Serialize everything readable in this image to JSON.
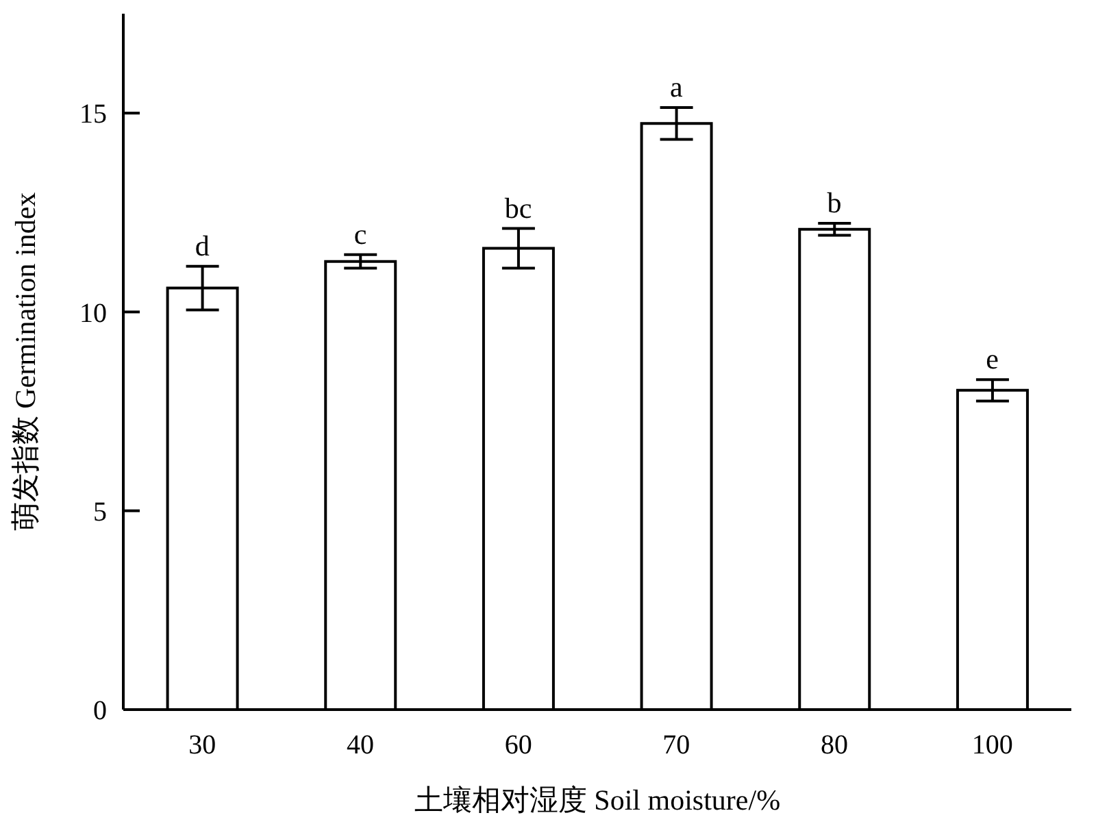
{
  "chart_data": {
    "type": "bar",
    "xlabel": "土壤相对湿度 Soil moisture/%",
    "ylabel": "萌发指数 Germination index",
    "categories": [
      "30",
      "40",
      "60",
      "70",
      "80",
      "100"
    ],
    "values": [
      10.6,
      11.27,
      11.6,
      14.74,
      12.08,
      8.03
    ],
    "errors": [
      0.55,
      0.17,
      0.5,
      0.4,
      0.15,
      0.27
    ],
    "color": "#ffffff",
    "ylim": [
      0,
      17.5
    ],
    "yticks": [
      0,
      5,
      10,
      15
    ],
    "grid": false,
    "annotations": [
      {
        "text": "d",
        "x": "30",
        "y": 11.15
      },
      {
        "text": "c",
        "x": "40",
        "y": 11.44
      },
      {
        "text": "bc",
        "x": "60",
        "y": 12.1
      },
      {
        "text": "a",
        "x": "70",
        "y": 15.14
      },
      {
        "text": "b",
        "x": "80",
        "y": 12.23
      },
      {
        "text": "e",
        "x": "100",
        "y": 8.3
      }
    ]
  }
}
